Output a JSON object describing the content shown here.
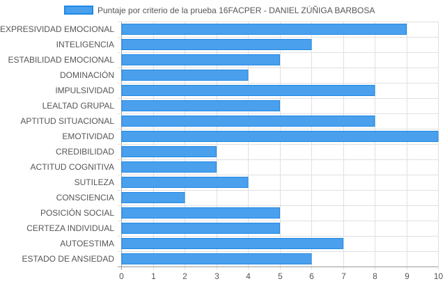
{
  "chart_data": {
    "type": "bar",
    "orientation": "horizontal",
    "title": "",
    "legend": {
      "position": "top",
      "entries": [
        "Puntaje por criterio de la prueba 16FACPER - DANIEL ZÚÑIGA BARBOSA"
      ]
    },
    "categories": [
      "EXPRESIVIDAD EMOCIONAL",
      "INTELIGENCIA",
      "ESTABILIDAD EMOCIONAL",
      "DOMINACIÓN",
      "IMPULSIVIDAD",
      "LEALTAD GRUPAL",
      "APTITUD SITUACIONAL",
      "EMOTIVIDAD",
      "CREDIBILIDAD",
      "ACTITUD COGNITIVA",
      "SUTILEZA",
      "CONSCIENCIA",
      "POSICIÓN SOCIAL",
      "CERTEZA INDIVIDUAL",
      "AUTOESTIMA",
      "ESTADO DE ANSIEDAD"
    ],
    "series": [
      {
        "name": "Puntaje por criterio de la prueba 16FACPER - DANIEL ZÚÑIGA BARBOSA",
        "values": [
          9,
          6,
          5,
          4,
          8,
          5,
          8,
          10,
          3,
          3,
          4,
          2,
          5,
          5,
          7,
          6
        ]
      }
    ],
    "xlim": [
      0,
      10
    ],
    "xticks": [
      "0",
      "1",
      "2",
      "3",
      "4",
      "5",
      "6",
      "7",
      "8",
      "9",
      "10"
    ],
    "grid": true,
    "colors": {
      "bar_fill": "#4aa0ed",
      "bar_border": "#1e88e5",
      "grid": "#e0e0e0",
      "axis": "#999999"
    }
  }
}
